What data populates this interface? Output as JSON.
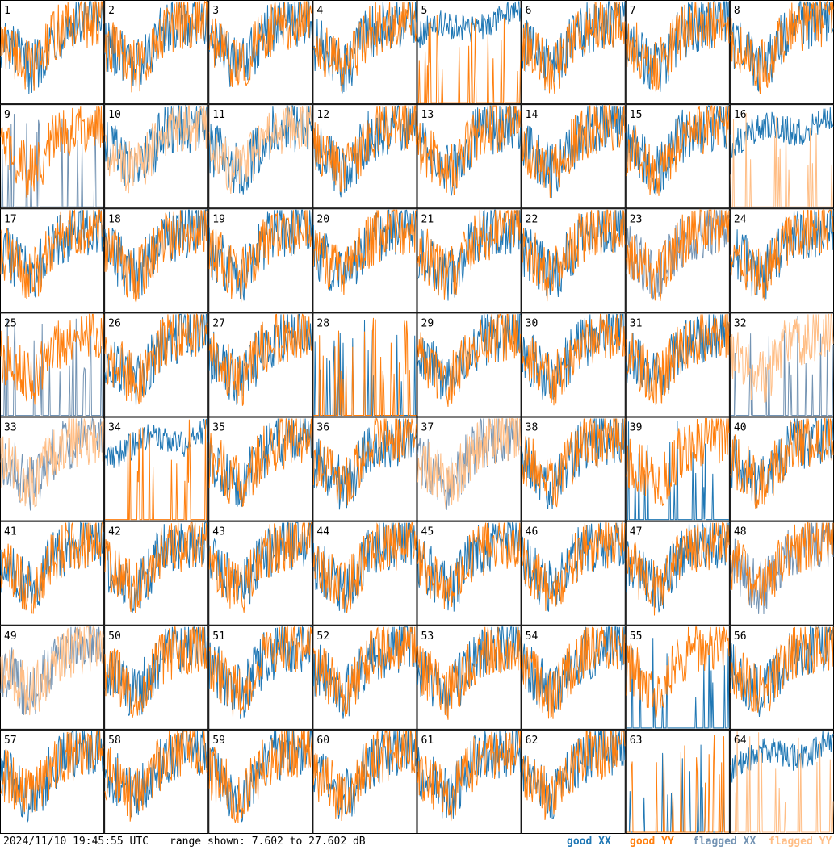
{
  "footer": {
    "timestamp": "2024/11/10 19:45:55 UTC",
    "range_text": "range shown: 7.602 to 27.602 dB"
  },
  "legend": {
    "good_xx": {
      "label": "good XX",
      "color": "#1f77b4"
    },
    "good_yy": {
      "label": "good YY",
      "color": "#ff7f0e"
    },
    "flagged_xx": {
      "label": "flagged XX",
      "color": "#7393b3"
    },
    "flagged_yy": {
      "label": "flagged YY",
      "color": "#ffbe86"
    }
  },
  "chart_data": {
    "type": "line",
    "layout": "small multiples 8x8",
    "ylim": [
      7.602,
      27.602
    ],
    "yunit": "dB",
    "x": "frequency channels (unlabeled)",
    "panels": [
      {
        "id": 1,
        "xx": "good",
        "yy": "good",
        "xx_mode": "normal",
        "yy_mode": "normal"
      },
      {
        "id": 2,
        "xx": "good",
        "yy": "good",
        "xx_mode": "normal",
        "yy_mode": "normal"
      },
      {
        "id": 3,
        "xx": "good",
        "yy": "good",
        "xx_mode": "normal",
        "yy_mode": "normal"
      },
      {
        "id": 4,
        "xx": "good",
        "yy": "good",
        "xx_mode": "normal",
        "yy_mode": "normal"
      },
      {
        "id": 5,
        "xx": "good",
        "yy": "good",
        "xx_mode": "high",
        "yy_mode": "spiky"
      },
      {
        "id": 6,
        "xx": "good",
        "yy": "good",
        "xx_mode": "normal",
        "yy_mode": "normal"
      },
      {
        "id": 7,
        "xx": "good",
        "yy": "good",
        "xx_mode": "normal",
        "yy_mode": "normal"
      },
      {
        "id": 8,
        "xx": "good",
        "yy": "good",
        "xx_mode": "normal",
        "yy_mode": "normal"
      },
      {
        "id": 9,
        "xx": "flagged",
        "yy": "good",
        "xx_mode": "spiky",
        "yy_mode": "normal"
      },
      {
        "id": 10,
        "xx": "good",
        "yy": "flagged",
        "xx_mode": "normal",
        "yy_mode": "normal"
      },
      {
        "id": 11,
        "xx": "good",
        "yy": "flagged",
        "xx_mode": "normal",
        "yy_mode": "normal"
      },
      {
        "id": 12,
        "xx": "good",
        "yy": "good",
        "xx_mode": "normal",
        "yy_mode": "normal"
      },
      {
        "id": 13,
        "xx": "good",
        "yy": "good",
        "xx_mode": "normal",
        "yy_mode": "normal"
      },
      {
        "id": 14,
        "xx": "good",
        "yy": "good",
        "xx_mode": "normal",
        "yy_mode": "normal"
      },
      {
        "id": 15,
        "xx": "good",
        "yy": "good",
        "xx_mode": "normal",
        "yy_mode": "normal"
      },
      {
        "id": 16,
        "xx": "good",
        "yy": "flagged",
        "xx_mode": "high",
        "yy_mode": "spiky"
      },
      {
        "id": 17,
        "xx": "good",
        "yy": "good",
        "xx_mode": "normal",
        "yy_mode": "normal"
      },
      {
        "id": 18,
        "xx": "good",
        "yy": "good",
        "xx_mode": "normal",
        "yy_mode": "normal"
      },
      {
        "id": 19,
        "xx": "good",
        "yy": "good",
        "xx_mode": "normal",
        "yy_mode": "normal"
      },
      {
        "id": 20,
        "xx": "good",
        "yy": "good",
        "xx_mode": "normal",
        "yy_mode": "normal"
      },
      {
        "id": 21,
        "xx": "good",
        "yy": "good",
        "xx_mode": "normal",
        "yy_mode": "normal"
      },
      {
        "id": 22,
        "xx": "good",
        "yy": "good",
        "xx_mode": "normal",
        "yy_mode": "normal"
      },
      {
        "id": 23,
        "xx": "flagged",
        "yy": "good",
        "xx_mode": "normal",
        "yy_mode": "normal"
      },
      {
        "id": 24,
        "xx": "good",
        "yy": "good",
        "xx_mode": "normal",
        "yy_mode": "normal"
      },
      {
        "id": 25,
        "xx": "flagged",
        "yy": "good",
        "xx_mode": "spiky",
        "yy_mode": "normal"
      },
      {
        "id": 26,
        "xx": "good",
        "yy": "good",
        "xx_mode": "normal",
        "yy_mode": "normal"
      },
      {
        "id": 27,
        "xx": "good",
        "yy": "good",
        "xx_mode": "normal",
        "yy_mode": "normal"
      },
      {
        "id": 28,
        "xx": "good",
        "yy": "good",
        "xx_mode": "spiky",
        "yy_mode": "spiky"
      },
      {
        "id": 29,
        "xx": "good",
        "yy": "good",
        "xx_mode": "normal",
        "yy_mode": "normal"
      },
      {
        "id": 30,
        "xx": "good",
        "yy": "good",
        "xx_mode": "normal",
        "yy_mode": "normal"
      },
      {
        "id": 31,
        "xx": "good",
        "yy": "good",
        "xx_mode": "normal",
        "yy_mode": "normal"
      },
      {
        "id": 32,
        "xx": "flagged",
        "yy": "flagged",
        "xx_mode": "spiky",
        "yy_mode": "normal"
      },
      {
        "id": 33,
        "xx": "flagged",
        "yy": "flagged",
        "xx_mode": "normal",
        "yy_mode": "normal"
      },
      {
        "id": 34,
        "xx": "good",
        "yy": "good",
        "xx_mode": "high",
        "yy_mode": "spiky"
      },
      {
        "id": 35,
        "xx": "good",
        "yy": "good",
        "xx_mode": "normal",
        "yy_mode": "normal"
      },
      {
        "id": 36,
        "xx": "good",
        "yy": "good",
        "xx_mode": "normal",
        "yy_mode": "normal"
      },
      {
        "id": 37,
        "xx": "flagged",
        "yy": "flagged",
        "xx_mode": "normal",
        "yy_mode": "normal"
      },
      {
        "id": 38,
        "xx": "good",
        "yy": "good",
        "xx_mode": "normal",
        "yy_mode": "normal"
      },
      {
        "id": 39,
        "xx": "good",
        "yy": "good",
        "xx_mode": "spiky",
        "yy_mode": "normal"
      },
      {
        "id": 40,
        "xx": "good",
        "yy": "good",
        "xx_mode": "normal",
        "yy_mode": "normal"
      },
      {
        "id": 41,
        "xx": "good",
        "yy": "good",
        "xx_mode": "normal",
        "yy_mode": "normal"
      },
      {
        "id": 42,
        "xx": "good",
        "yy": "good",
        "xx_mode": "normal",
        "yy_mode": "normal"
      },
      {
        "id": 43,
        "xx": "good",
        "yy": "good",
        "xx_mode": "normal",
        "yy_mode": "normal"
      },
      {
        "id": 44,
        "xx": "good",
        "yy": "good",
        "xx_mode": "normal",
        "yy_mode": "normal"
      },
      {
        "id": 45,
        "xx": "good",
        "yy": "good",
        "xx_mode": "normal",
        "yy_mode": "normal"
      },
      {
        "id": 46,
        "xx": "good",
        "yy": "good",
        "xx_mode": "normal",
        "yy_mode": "normal"
      },
      {
        "id": 47,
        "xx": "good",
        "yy": "good",
        "xx_mode": "normal",
        "yy_mode": "normal"
      },
      {
        "id": 48,
        "xx": "flagged",
        "yy": "good",
        "xx_mode": "normal",
        "yy_mode": "normal"
      },
      {
        "id": 49,
        "xx": "flagged",
        "yy": "flagged",
        "xx_mode": "normal",
        "yy_mode": "normal"
      },
      {
        "id": 50,
        "xx": "good",
        "yy": "good",
        "xx_mode": "normal",
        "yy_mode": "normal"
      },
      {
        "id": 51,
        "xx": "good",
        "yy": "good",
        "xx_mode": "normal",
        "yy_mode": "normal"
      },
      {
        "id": 52,
        "xx": "good",
        "yy": "good",
        "xx_mode": "normal",
        "yy_mode": "normal"
      },
      {
        "id": 53,
        "xx": "good",
        "yy": "good",
        "xx_mode": "normal",
        "yy_mode": "normal"
      },
      {
        "id": 54,
        "xx": "good",
        "yy": "good",
        "xx_mode": "normal",
        "yy_mode": "normal"
      },
      {
        "id": 55,
        "xx": "good",
        "yy": "good",
        "xx_mode": "spiky",
        "yy_mode": "normal"
      },
      {
        "id": 56,
        "xx": "good",
        "yy": "good",
        "xx_mode": "normal",
        "yy_mode": "normal"
      },
      {
        "id": 57,
        "xx": "good",
        "yy": "good",
        "xx_mode": "normal",
        "yy_mode": "normal"
      },
      {
        "id": 58,
        "xx": "good",
        "yy": "good",
        "xx_mode": "normal",
        "yy_mode": "normal"
      },
      {
        "id": 59,
        "xx": "good",
        "yy": "good",
        "xx_mode": "normal",
        "yy_mode": "normal"
      },
      {
        "id": 60,
        "xx": "good",
        "yy": "good",
        "xx_mode": "normal",
        "yy_mode": "normal"
      },
      {
        "id": 61,
        "xx": "good",
        "yy": "good",
        "xx_mode": "normal",
        "yy_mode": "normal"
      },
      {
        "id": 62,
        "xx": "good",
        "yy": "good",
        "xx_mode": "normal",
        "yy_mode": "normal"
      },
      {
        "id": 63,
        "xx": "good",
        "yy": "good",
        "xx_mode": "spiky",
        "yy_mode": "spiky"
      },
      {
        "id": 64,
        "xx": "good",
        "yy": "flagged",
        "xx_mode": "high",
        "yy_mode": "spiky"
      }
    ]
  }
}
